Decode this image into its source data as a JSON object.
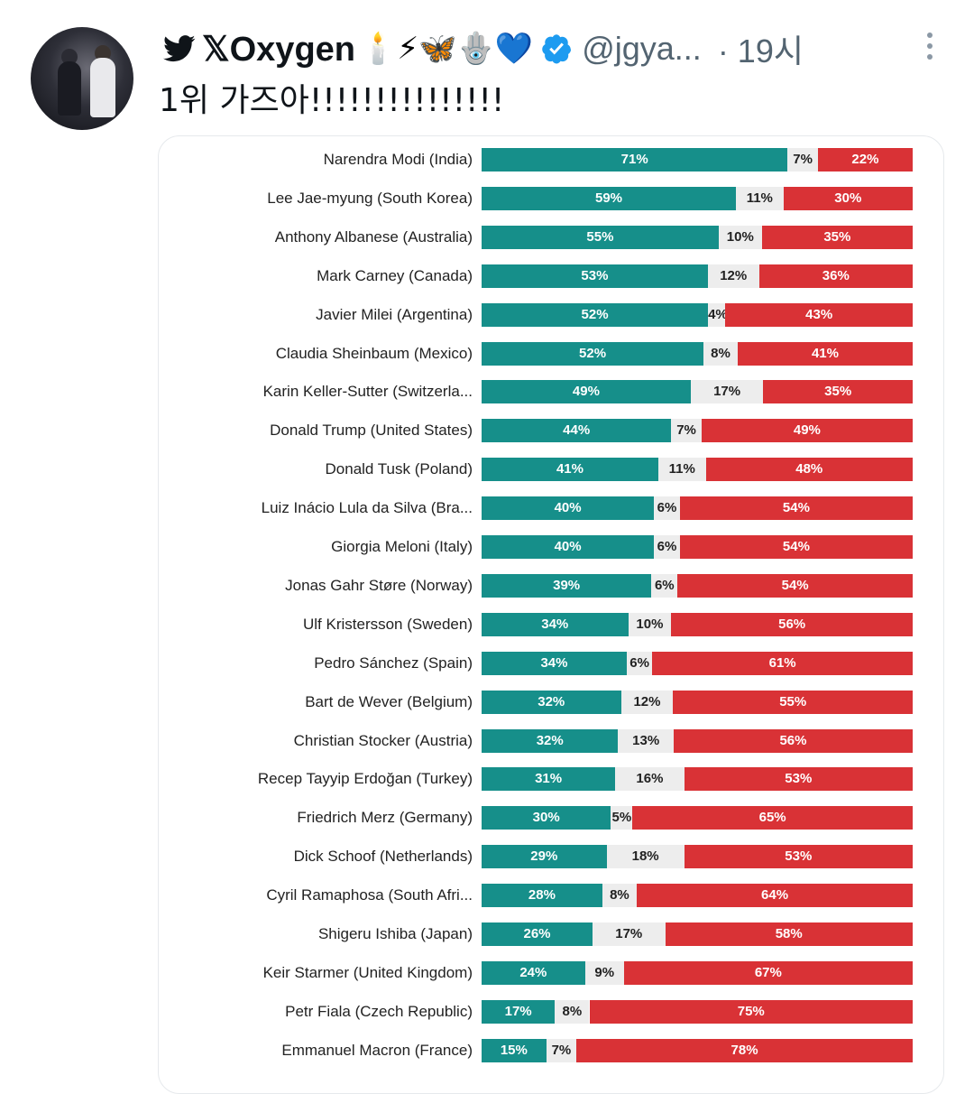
{
  "tweet": {
    "display_name": "𝕏Oxygen",
    "name_emojis": "🕯️⚡🦋🪬💙",
    "handle": "@jgya...",
    "time": "· 19시",
    "text": "1위 가즈아!!!!!!!!!!!!!!!",
    "icons": {
      "bird": "twitter-bird-icon",
      "verified": "verified-badge-icon",
      "more": "more-options-icon"
    },
    "colors": {
      "bird": "#0f1419",
      "verified": "#1d9bf0",
      "secondary_text": "#536471"
    }
  },
  "chart_data": {
    "type": "bar",
    "stacked": true,
    "orientation": "horizontal",
    "colors": {
      "approve": "#168f8a",
      "neutral": "#ededed",
      "disapprove": "#d93236"
    },
    "rows": [
      {
        "label": "Narendra Modi (India)",
        "approve": 71,
        "neutral": 7,
        "disapprove": 22
      },
      {
        "label": "Lee Jae-myung (South Korea)",
        "approve": 59,
        "neutral": 11,
        "disapprove": 30
      },
      {
        "label": "Anthony Albanese (Australia)",
        "approve": 55,
        "neutral": 10,
        "disapprove": 35
      },
      {
        "label": "Mark Carney (Canada)",
        "approve": 53,
        "neutral": 12,
        "disapprove": 36
      },
      {
        "label": "Javier Milei (Argentina)",
        "approve": 52,
        "neutral": 4,
        "disapprove": 43
      },
      {
        "label": "Claudia Sheinbaum (Mexico)",
        "approve": 52,
        "neutral": 8,
        "disapprove": 41
      },
      {
        "label": "Karin Keller-Sutter (Switzerla...",
        "approve": 49,
        "neutral": 17,
        "disapprove": 35
      },
      {
        "label": "Donald Trump (United States)",
        "approve": 44,
        "neutral": 7,
        "disapprove": 49
      },
      {
        "label": "Donald Tusk (Poland)",
        "approve": 41,
        "neutral": 11,
        "disapprove": 48
      },
      {
        "label": "Luiz Inácio Lula da Silva (Bra...",
        "approve": 40,
        "neutral": 6,
        "disapprove": 54
      },
      {
        "label": "Giorgia Meloni (Italy)",
        "approve": 40,
        "neutral": 6,
        "disapprove": 54
      },
      {
        "label": "Jonas Gahr Støre (Norway)",
        "approve": 39,
        "neutral": 6,
        "disapprove": 54
      },
      {
        "label": "Ulf Kristersson (Sweden)",
        "approve": 34,
        "neutral": 10,
        "disapprove": 56
      },
      {
        "label": "Pedro Sánchez (Spain)",
        "approve": 34,
        "neutral": 6,
        "disapprove": 61
      },
      {
        "label": "Bart de Wever (Belgium)",
        "approve": 32,
        "neutral": 12,
        "disapprove": 55
      },
      {
        "label": "Christian Stocker (Austria)",
        "approve": 32,
        "neutral": 13,
        "disapprove": 56
      },
      {
        "label": "Recep Tayyip Erdoğan (Turkey)",
        "approve": 31,
        "neutral": 16,
        "disapprove": 53
      },
      {
        "label": "Friedrich Merz (Germany)",
        "approve": 30,
        "neutral": 5,
        "disapprove": 65
      },
      {
        "label": "Dick Schoof (Netherlands)",
        "approve": 29,
        "neutral": 18,
        "disapprove": 53
      },
      {
        "label": "Cyril Ramaphosa (South Afri...",
        "approve": 28,
        "neutral": 8,
        "disapprove": 64
      },
      {
        "label": "Shigeru Ishiba (Japan)",
        "approve": 26,
        "neutral": 17,
        "disapprove": 58
      },
      {
        "label": "Keir Starmer (United Kingdom)",
        "approve": 24,
        "neutral": 9,
        "disapprove": 67
      },
      {
        "label": "Petr Fiala (Czech Republic)",
        "approve": 17,
        "neutral": 8,
        "disapprove": 75
      },
      {
        "label": "Emmanuel Macron (France)",
        "approve": 15,
        "neutral": 7,
        "disapprove": 78
      }
    ]
  }
}
